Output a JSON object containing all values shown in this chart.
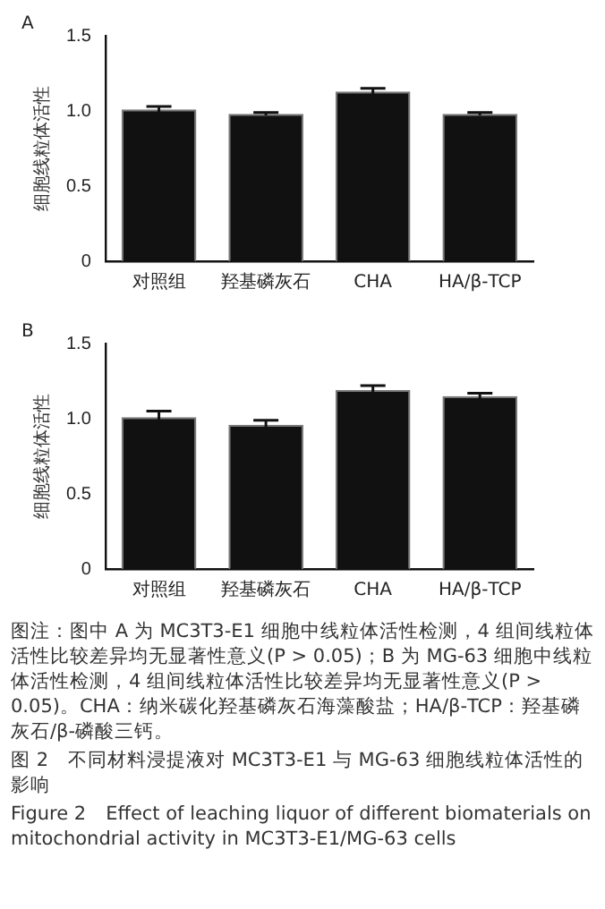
{
  "chart_data": [
    {
      "type": "bar",
      "title": "A",
      "ylabel": "细胞线粒体活性",
      "categories": [
        "对照组",
        "羟基磷灰石",
        "CHA",
        "HA/β-TCP"
      ],
      "values": [
        1.01,
        0.98,
        1.13,
        0.98
      ],
      "errors": [
        0.02,
        0.01,
        0.02,
        0.01
      ],
      "color": "#111111",
      "ylim": [
        0,
        1.5
      ],
      "yticks": [
        0,
        0.5,
        {
          "value": 1,
          "label": "1.0"
        },
        1.5
      ],
      "grid": false,
      "legend": false
    },
    {
      "type": "bar",
      "title": "B",
      "ylabel": "细胞线粒体活性",
      "categories": [
        "对照组",
        "羟基磷灰石",
        "CHA",
        "HA/β-TCP"
      ],
      "values": [
        1.01,
        0.96,
        1.19,
        1.15
      ],
      "errors": [
        0.04,
        0.03,
        0.03,
        0.02
      ],
      "color": "#111111",
      "ylim": [
        0,
        1.5
      ],
      "yticks": [
        0,
        0.5,
        {
          "value": 1,
          "label": "1.0"
        },
        1.5
      ],
      "grid": false,
      "legend": false,
      "annotations": [
        "图注：图中 A 为 MC3T3-E1 细胞中线粒体活性检测，4 组间线粒体活性比较差异均无显著性意义(P > 0.05)；B 为 MG-63 细胞中线粒体活性检测，4 组间线粒体活性比较差异均无显著性意义(P > 0.05)。CHA：纳米碳化羟基磷灰石海藻酸盐；HA/β-TCP：羟基磷灰石/β-磷酸三钙。",
        "图 2　不同材料浸提液对 MC3T3-E1 与 MG-63 细胞线粒体活性的影响",
        "Figure 2　Effect of leaching liquor of different biomaterials on mitochondrial activity in MC3T3-E1/MG-63 cells"
      ]
    }
  ]
}
